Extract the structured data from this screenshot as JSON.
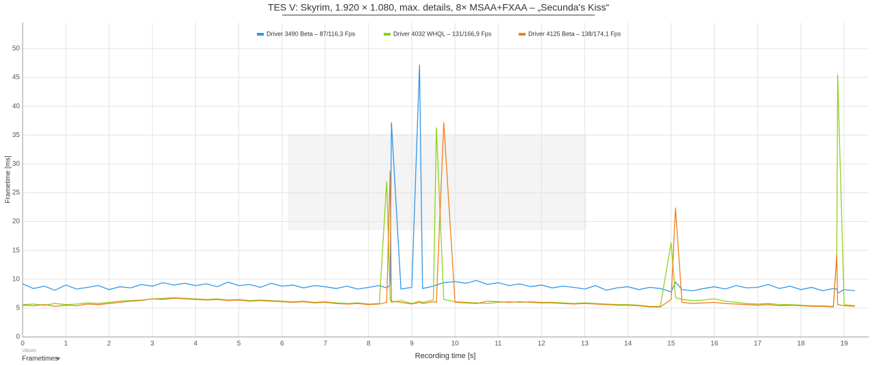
{
  "chart_data": {
    "type": "line",
    "title": "TES V: Skyrim, 1.920 × 1.080, max. details, 8× MSAA+FXAA – „Secunda's Kiss“",
    "x_label": "Recording time [s]",
    "y_label": "Frametime [ms]",
    "xlim": [
      0,
      19.57
    ],
    "ylim": [
      0,
      54.5
    ],
    "xticks": [
      0,
      1,
      2,
      3,
      4,
      5,
      6,
      7,
      8,
      9,
      10,
      11,
      12,
      13,
      14,
      15,
      16,
      17,
      18,
      19
    ],
    "yticks": [
      0,
      5,
      10,
      15,
      20,
      25,
      30,
      35,
      40,
      45,
      50
    ],
    "grid": true,
    "legend": "top",
    "x": [
      0,
      0.25,
      0.5,
      0.75,
      1,
      1.25,
      1.5,
      1.75,
      2,
      2.25,
      2.5,
      2.75,
      3,
      3.25,
      3.5,
      3.75,
      4,
      4.25,
      4.5,
      4.75,
      5,
      5.25,
      5.5,
      5.75,
      6,
      6.25,
      6.5,
      6.75,
      7,
      7.25,
      7.5,
      7.75,
      8,
      8.25,
      8.42,
      8.5,
      8.53,
      8.75,
      9,
      9.18,
      9.25,
      9.5,
      9.57,
      9.74,
      10,
      10.25,
      10.5,
      10.75,
      11,
      11.25,
      11.5,
      11.75,
      12,
      12.25,
      12.5,
      12.75,
      13,
      13.25,
      13.5,
      13.75,
      14,
      14.25,
      14.5,
      14.75,
      15,
      15.1,
      15.25,
      15.5,
      15.75,
      16,
      16.25,
      16.5,
      16.75,
      17,
      17.25,
      17.5,
      17.75,
      18,
      18.25,
      18.5,
      18.75,
      18.83,
      18.85,
      19,
      19.25
    ],
    "series": [
      {
        "name": "Driver 3490 Beta – 87/116,3 Fps",
        "color": "#2f96e8",
        "values": [
          9.2,
          8.4,
          8.8,
          8.1,
          9.0,
          8.3,
          8.6,
          8.9,
          8.2,
          8.7,
          8.5,
          9.1,
          8.8,
          9.4,
          9.0,
          9.3,
          8.9,
          9.2,
          8.7,
          9.5,
          8.9,
          9.1,
          8.6,
          9.3,
          8.8,
          9.0,
          8.5,
          8.9,
          8.7,
          8.4,
          8.8,
          8.3,
          8.6,
          8.9,
          8.5,
          9.0,
          37.2,
          8.3,
          8.6,
          47.2,
          8.4,
          8.8,
          9.0,
          9.4,
          9.6,
          9.3,
          9.8,
          9.1,
          9.4,
          8.9,
          9.2,
          8.7,
          9.0,
          8.5,
          8.8,
          8.6,
          8.3,
          8.9,
          8.1,
          8.5,
          8.7,
          8.2,
          8.6,
          8.4,
          7.8,
          9.5,
          8.2,
          8.0,
          8.4,
          8.7,
          8.3,
          8.9,
          8.5,
          8.6,
          9.1,
          8.4,
          8.8,
          8.2,
          8.6,
          8.0,
          8.4,
          8.3,
          7.6,
          8.2,
          8.0
        ]
      },
      {
        "name": "Driver 4032 WHQL – 131/166,9 Fps",
        "color": "#8fd11a",
        "values": [
          5.6,
          5.7,
          5.5,
          5.8,
          5.6,
          5.7,
          5.9,
          5.8,
          6.0,
          6.2,
          6.3,
          6.4,
          6.6,
          6.7,
          6.8,
          6.7,
          6.6,
          6.5,
          6.6,
          6.4,
          6.5,
          6.3,
          6.4,
          6.3,
          6.2,
          6.1,
          6.2,
          6.0,
          6.1,
          5.9,
          5.8,
          5.9,
          5.7,
          5.8,
          27.0,
          6.5,
          6.0,
          6.3,
          5.8,
          6.2,
          6.0,
          6.4,
          36.3,
          6.5,
          6.1,
          6.0,
          5.9,
          5.8,
          6.0,
          6.1,
          6.0,
          6.1,
          6.0,
          6.0,
          5.9,
          5.8,
          5.9,
          5.8,
          5.7,
          5.6,
          5.6,
          5.5,
          5.3,
          5.3,
          16.4,
          6.8,
          6.5,
          6.3,
          6.4,
          6.6,
          6.2,
          6.0,
          5.8,
          5.7,
          5.8,
          5.6,
          5.6,
          5.5,
          5.4,
          5.4,
          5.3,
          14.0,
          45.5,
          5.6,
          5.4
        ]
      },
      {
        "name": "Driver 4125 Beta – 138/174,1 Fps",
        "color": "#f07f1a",
        "values": [
          5.5,
          5.4,
          5.6,
          5.3,
          5.5,
          5.4,
          5.7,
          5.6,
          5.8,
          6.0,
          6.2,
          6.3,
          6.6,
          6.5,
          6.7,
          6.6,
          6.5,
          6.4,
          6.5,
          6.3,
          6.4,
          6.2,
          6.3,
          6.2,
          6.1,
          6.0,
          6.1,
          5.9,
          6.0,
          5.8,
          5.7,
          5.8,
          5.6,
          5.7,
          6.0,
          28.8,
          6.2,
          6.0,
          5.7,
          6.0,
          5.8,
          6.1,
          6.0,
          37.2,
          6.0,
          5.9,
          5.8,
          6.2,
          6.1,
          6.0,
          6.1,
          6.0,
          5.9,
          5.9,
          5.8,
          5.7,
          5.8,
          5.7,
          5.6,
          5.5,
          5.5,
          5.4,
          5.2,
          5.2,
          6.5,
          22.4,
          6.0,
          5.8,
          5.9,
          6.0,
          5.8,
          5.7,
          5.6,
          5.5,
          5.6,
          5.4,
          5.5,
          5.4,
          5.3,
          5.3,
          5.2,
          14.3,
          5.6,
          5.4,
          5.3
        ]
      }
    ]
  },
  "ui": {
    "values_caption": "Values",
    "dropdown": "Frametimes"
  }
}
